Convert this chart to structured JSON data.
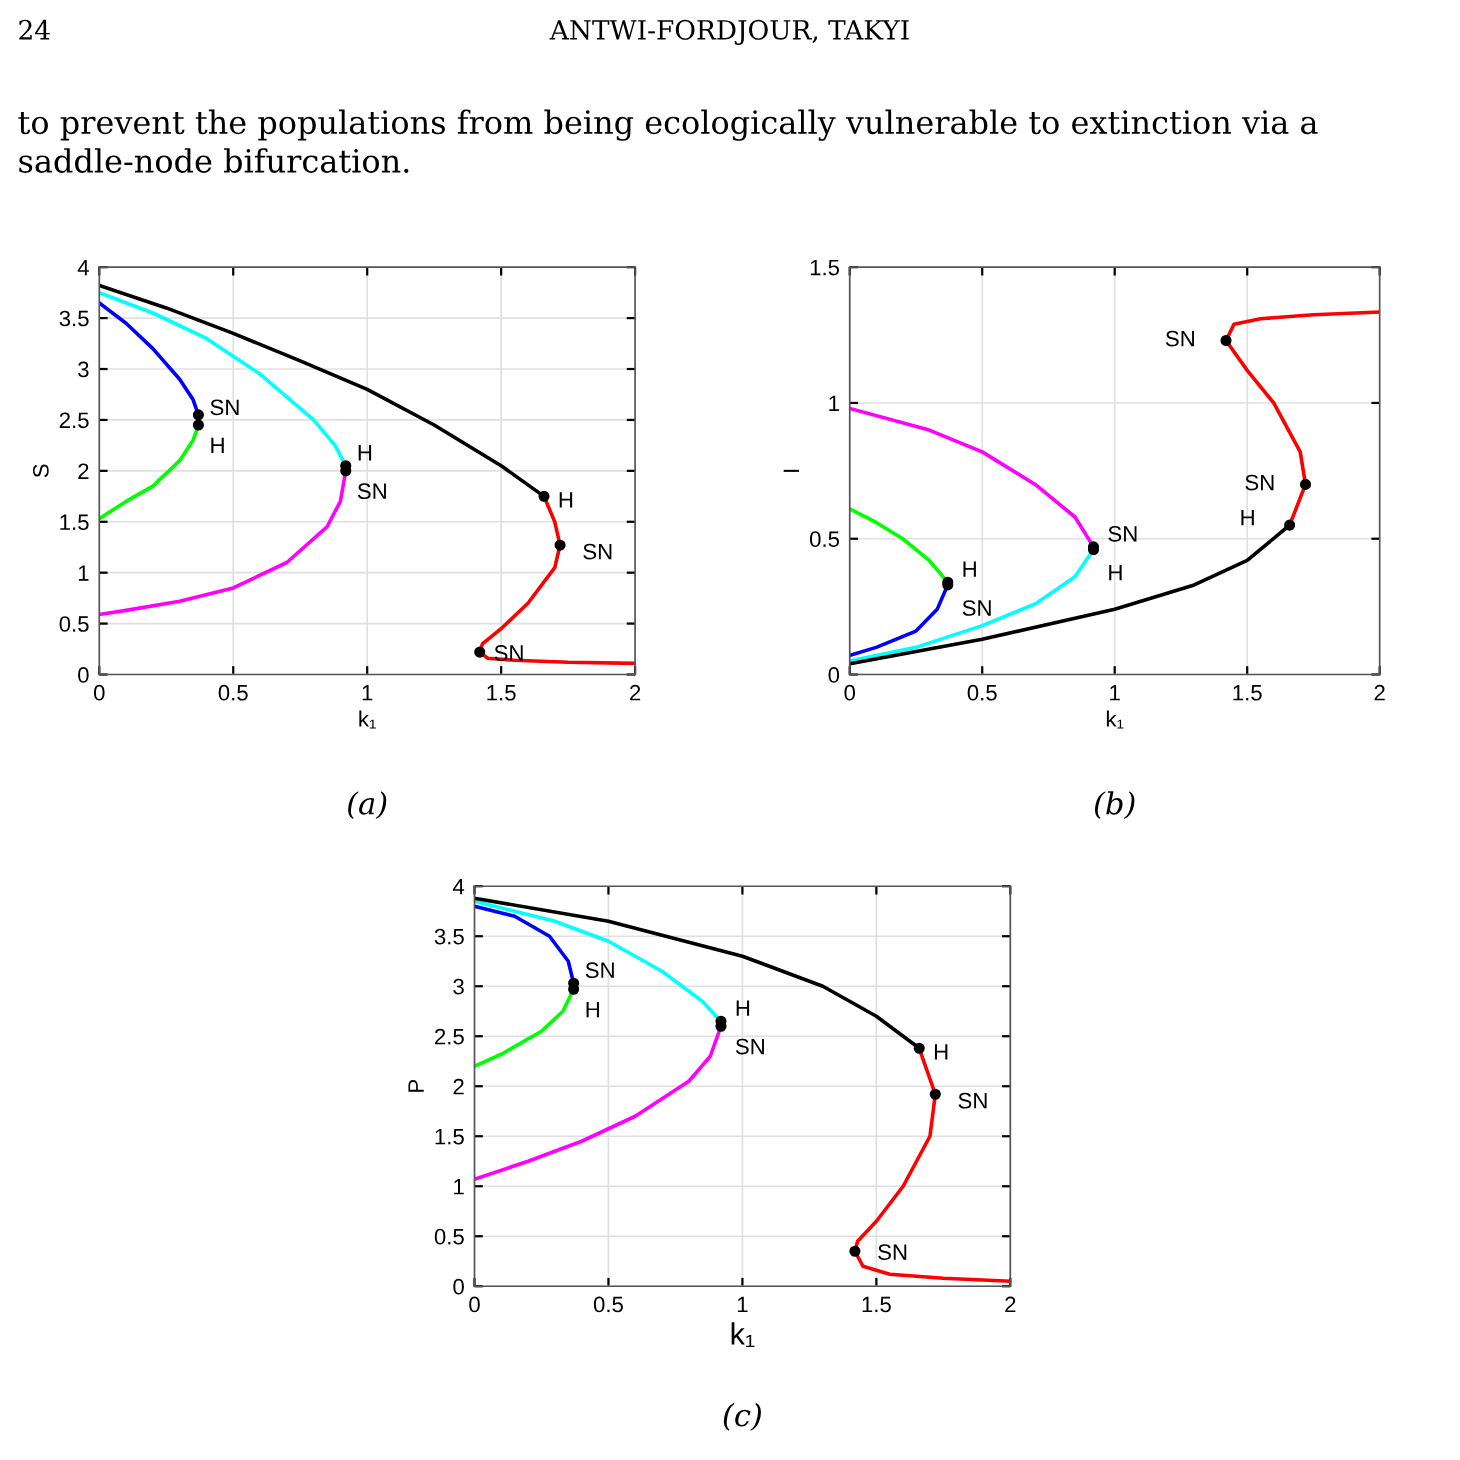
{
  "chart_data": [
    {
      "type": "line",
      "xlabel": "k₁",
      "ylabel": "S",
      "xlim": [
        0,
        2
      ],
      "ylim": [
        0,
        4
      ],
      "xticks": [
        0,
        0.5,
        1,
        1.5,
        2
      ],
      "yticks": [
        0,
        0.5,
        1,
        1.5,
        2,
        2.5,
        3,
        3.5,
        4
      ],
      "grid": true,
      "legend": false,
      "marker": "none",
      "line_style": "solid",
      "annotations": [
        "24",
        "ANTWI-FORDJOUR, TAKYI",
        "to prevent the populations from being ecologically vulnerable to extinction via a saddle-node bifurcation.",
        "(a)",
        {
          "text": "SN",
          "x": 0.37,
          "y": 2.55
        },
        {
          "text": "H",
          "x": 0.37,
          "y": 2.45
        },
        {
          "text": "H",
          "x": 0.92,
          "y": 2.05
        },
        {
          "text": "SN",
          "x": 0.92,
          "y": 2.0
        },
        {
          "text": "H",
          "x": 1.66,
          "y": 1.75
        },
        {
          "text": "SN",
          "x": 1.72,
          "y": 1.27
        },
        {
          "text": "SN",
          "x": 1.42,
          "y": 0.22
        }
      ],
      "series": [
        {
          "color": "#0000ff",
          "x": [
            0,
            0.1,
            0.2,
            0.3,
            0.35,
            0.37
          ],
          "values": [
            3.65,
            3.45,
            3.2,
            2.9,
            2.7,
            2.55
          ]
        },
        {
          "color": "#00ff00",
          "x": [
            0.37,
            0.35,
            0.3,
            0.2,
            0.1,
            0
          ],
          "values": [
            2.45,
            2.3,
            2.1,
            1.85,
            1.7,
            1.53
          ]
        },
        {
          "color": "#00ffff",
          "x": [
            0,
            0.2,
            0.4,
            0.6,
            0.8,
            0.88,
            0.92
          ],
          "values": [
            3.75,
            3.55,
            3.3,
            2.95,
            2.5,
            2.25,
            2.05
          ]
        },
        {
          "color": "#ff00ff",
          "x": [
            0.92,
            0.9,
            0.85,
            0.7,
            0.5,
            0.3,
            0.1,
            0
          ],
          "values": [
            2.0,
            1.7,
            1.45,
            1.1,
            0.85,
            0.72,
            0.63,
            0.59
          ]
        },
        {
          "color": "#000000",
          "x": [
            0,
            0.25,
            0.5,
            0.75,
            1.0,
            1.25,
            1.5,
            1.66
          ],
          "values": [
            3.82,
            3.6,
            3.35,
            3.08,
            2.8,
            2.45,
            2.05,
            1.75
          ]
        },
        {
          "color": "#ff0000",
          "x": [
            1.66,
            1.7,
            1.72,
            1.7,
            1.6,
            1.5,
            1.43,
            1.42,
            1.45,
            1.55,
            1.75,
            2
          ],
          "values": [
            1.75,
            1.5,
            1.27,
            1.05,
            0.7,
            0.45,
            0.3,
            0.22,
            0.16,
            0.14,
            0.12,
            0.11
          ]
        },
        {
          "type": "scatter",
          "color": "#000000",
          "marker": "circle",
          "x": [
            0.37,
            0.37,
            0.92,
            0.92,
            1.66,
            1.72,
            1.42
          ],
          "values": [
            2.55,
            2.45,
            2.05,
            2.0,
            1.75,
            1.27,
            0.22
          ]
        }
      ]
    },
    {
      "type": "line",
      "xlabel": "k₁",
      "ylabel": "I",
      "xlim": [
        0,
        2
      ],
      "ylim": [
        0,
        1.5
      ],
      "xticks": [
        0,
        0.5,
        1,
        1.5,
        2
      ],
      "yticks": [
        0,
        0.5,
        1,
        1.5
      ],
      "grid": true,
      "legend": false,
      "marker": "none",
      "line_style": "solid",
      "annotations": [
        "(b)",
        {
          "text": "H",
          "x": 0.37,
          "y": 0.34
        },
        {
          "text": "SN",
          "x": 0.37,
          "y": 0.33
        },
        {
          "text": "SN",
          "x": 0.92,
          "y": 0.47
        },
        {
          "text": "H",
          "x": 0.92,
          "y": 0.46
        },
        {
          "text": "SN",
          "x": 1.42,
          "y": 1.23
        },
        {
          "text": "SN",
          "x": 1.72,
          "y": 0.7
        },
        {
          "text": "H",
          "x": 1.66,
          "y": 0.55
        }
      ],
      "series": [
        {
          "color": "#ff00ff",
          "x": [
            0,
            0.3,
            0.5,
            0.7,
            0.85,
            0.92
          ],
          "values": [
            0.98,
            0.9,
            0.82,
            0.7,
            0.58,
            0.47
          ]
        },
        {
          "color": "#00ffff",
          "x": [
            0.92,
            0.85,
            0.7,
            0.5,
            0.25,
            0
          ],
          "values": [
            0.46,
            0.36,
            0.26,
            0.18,
            0.1,
            0.05
          ]
        },
        {
          "color": "#00ff00",
          "x": [
            0,
            0.1,
            0.2,
            0.3,
            0.37
          ],
          "values": [
            0.61,
            0.56,
            0.5,
            0.42,
            0.34
          ]
        },
        {
          "color": "#0000ff",
          "x": [
            0.37,
            0.33,
            0.25,
            0.1,
            0
          ],
          "values": [
            0.33,
            0.24,
            0.16,
            0.1,
            0.07
          ]
        },
        {
          "color": "#000000",
          "x": [
            0,
            0.5,
            1.0,
            1.3,
            1.5,
            1.66
          ],
          "values": [
            0.04,
            0.13,
            0.24,
            0.33,
            0.42,
            0.55
          ]
        },
        {
          "color": "#ff0000",
          "x": [
            1.66,
            1.72,
            1.7,
            1.6,
            1.5,
            1.42,
            1.45,
            1.55,
            1.75,
            2
          ],
          "values": [
            0.55,
            0.7,
            0.82,
            1.0,
            1.12,
            1.23,
            1.29,
            1.31,
            1.325,
            1.335
          ]
        },
        {
          "type": "scatter",
          "color": "#000000",
          "marker": "circle",
          "x": [
            0.37,
            0.37,
            0.92,
            0.92,
            1.42,
            1.72,
            1.66
          ],
          "values": [
            0.34,
            0.33,
            0.47,
            0.46,
            1.23,
            0.7,
            0.55
          ]
        }
      ]
    },
    {
      "type": "line",
      "xlabel": "k₁",
      "ylabel": "P",
      "xlim": [
        0,
        2
      ],
      "ylim": [
        0,
        4
      ],
      "xticks": [
        0,
        0.5,
        1,
        1.5,
        2
      ],
      "yticks": [
        0,
        0.5,
        1,
        1.5,
        2,
        2.5,
        3,
        3.5,
        4
      ],
      "grid": true,
      "legend": false,
      "marker": "none",
      "line_style": "solid",
      "annotations": [
        "(c)",
        {
          "text": "SN",
          "x": 0.37,
          "y": 3.03
        },
        {
          "text": "H",
          "x": 0.37,
          "y": 2.97
        },
        {
          "text": "H",
          "x": 0.92,
          "y": 2.65
        },
        {
          "text": "SN",
          "x": 0.92,
          "y": 2.6
        },
        {
          "text": "H",
          "x": 1.66,
          "y": 2.38
        },
        {
          "text": "SN",
          "x": 1.72,
          "y": 1.92
        },
        {
          "text": "SN",
          "x": 1.42,
          "y": 0.35
        }
      ],
      "series": [
        {
          "color": "#0000ff",
          "x": [
            0,
            0.15,
            0.28,
            0.35,
            0.37
          ],
          "values": [
            3.8,
            3.7,
            3.5,
            3.25,
            3.03
          ]
        },
        {
          "color": "#00ff00",
          "x": [
            0.37,
            0.33,
            0.25,
            0.1,
            0
          ],
          "values": [
            2.97,
            2.75,
            2.55,
            2.32,
            2.2
          ]
        },
        {
          "color": "#00ffff",
          "x": [
            0,
            0.3,
            0.5,
            0.7,
            0.85,
            0.92
          ],
          "values": [
            3.85,
            3.65,
            3.45,
            3.15,
            2.85,
            2.65
          ]
        },
        {
          "color": "#ff00ff",
          "x": [
            0.92,
            0.88,
            0.8,
            0.6,
            0.4,
            0.2,
            0
          ],
          "values": [
            2.6,
            2.3,
            2.05,
            1.7,
            1.45,
            1.25,
            1.07
          ]
        },
        {
          "color": "#000000",
          "x": [
            0,
            0.5,
            1.0,
            1.3,
            1.5,
            1.66
          ],
          "values": [
            3.88,
            3.65,
            3.3,
            3.0,
            2.7,
            2.38
          ]
        },
        {
          "color": "#ff0000",
          "x": [
            1.66,
            1.72,
            1.7,
            1.6,
            1.5,
            1.43,
            1.42,
            1.45,
            1.55,
            1.75,
            2
          ],
          "values": [
            2.38,
            1.92,
            1.5,
            1.0,
            0.65,
            0.45,
            0.35,
            0.2,
            0.12,
            0.08,
            0.05
          ]
        },
        {
          "type": "scatter",
          "color": "#000000",
          "marker": "circle",
          "x": [
            0.37,
            0.37,
            0.92,
            0.92,
            1.66,
            1.72,
            1.42
          ],
          "values": [
            3.03,
            2.97,
            2.65,
            2.6,
            2.38,
            1.92,
            0.35
          ]
        }
      ]
    }
  ]
}
